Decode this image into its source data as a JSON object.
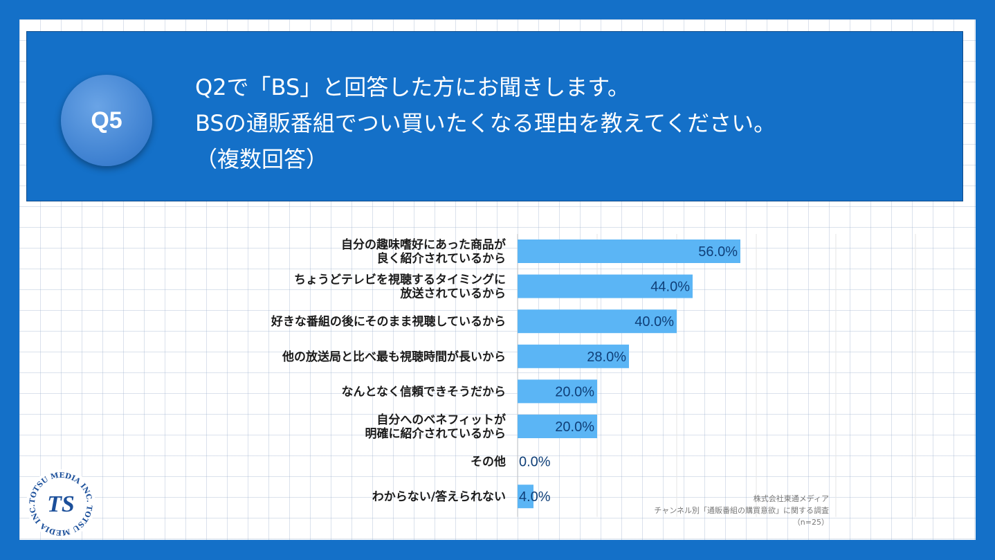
{
  "header": {
    "badge": "Q5",
    "question_lines": [
      "Q2で「BS」と回答した方にお聞きします。",
      "BSの通販番組でつい買いたくなる理由を教えてください。",
      "（複数回答）"
    ]
  },
  "chart_data": {
    "type": "bar",
    "orientation": "horizontal",
    "categories": [
      [
        "自分の趣味嗜好にあった商品が",
        "良く紹介されているから"
      ],
      [
        "ちょうどテレビを視聴するタイミングに",
        "放送されているから"
      ],
      [
        "好きな番組の後にそのまま視聴しているから"
      ],
      [
        "他の放送局と比べ最も視聴時間が長いから"
      ],
      [
        "なんとなく信頼できそうだから"
      ],
      [
        "自分へのベネフィットが",
        "明確に紹介されているから"
      ],
      [
        "その他"
      ],
      [
        "わからない/答えられない"
      ]
    ],
    "values": [
      56.0,
      44.0,
      40.0,
      28.0,
      20.0,
      20.0,
      0.0,
      4.0
    ],
    "value_labels": [
      "56.0%",
      "44.0%",
      "40.0%",
      "28.0%",
      "20.0%",
      "20.0%",
      "0.0%",
      "4.0%"
    ],
    "xlim": [
      0,
      100
    ],
    "unit": "%",
    "bar_color": "#5bb5f5",
    "grid": true
  },
  "credit": {
    "company": "株式会社東通メディア",
    "survey": "チャンネル別「通販番組の購買意欲」に関する調査",
    "sample": "（n=25）"
  },
  "logo": {
    "ring_text": "TOTSU MEDIA INC. TOTSU MEDIA INC. TOTSU MEDIA INC. ",
    "mark": "TS"
  }
}
